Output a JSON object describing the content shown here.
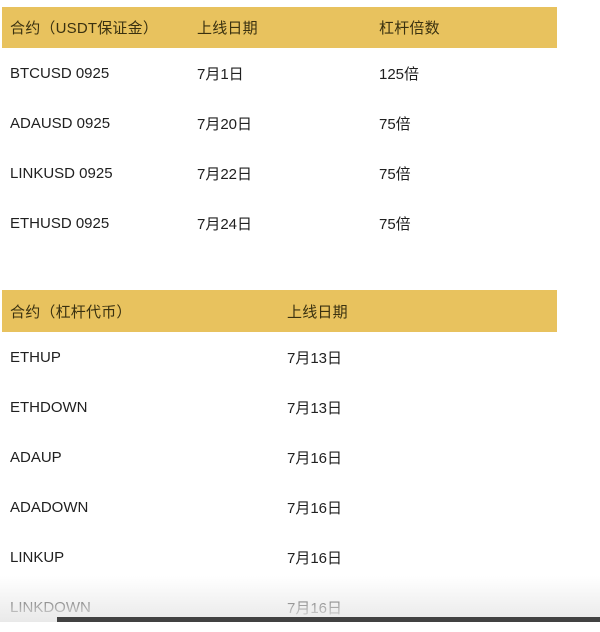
{
  "colors": {
    "header_bg": "#e8c25e",
    "header_text": "#3a3110",
    "body_text": "#202020",
    "partial_bar": "#414141"
  },
  "futures_table": {
    "columns": {
      "contract": "合约（USDT保证金）",
      "date": "上线日期",
      "leverage": "杠杆倍数"
    },
    "rows": [
      {
        "contract": "BTCUSD 0925",
        "date": "7月1日",
        "leverage": "125倍"
      },
      {
        "contract": "ADAUSD 0925",
        "date": "7月20日",
        "leverage": "75倍"
      },
      {
        "contract": "LINKUSD 0925",
        "date": "7月22日",
        "leverage": "75倍"
      },
      {
        "contract": "ETHUSD 0925",
        "date": "7月24日",
        "leverage": "75倍"
      }
    ]
  },
  "leveraged_tokens_table": {
    "columns": {
      "contract": "合约（杠杆代币）",
      "date": "上线日期"
    },
    "rows": [
      {
        "contract": "ETHUP",
        "date": "7月13日"
      },
      {
        "contract": "ETHDOWN",
        "date": "7月13日"
      },
      {
        "contract": "ADAUP",
        "date": "7月16日"
      },
      {
        "contract": "ADADOWN",
        "date": "7月16日"
      },
      {
        "contract": "LINKUP",
        "date": "7月16日"
      },
      {
        "contract": "LINKDOWN",
        "date": "7月16日"
      }
    ]
  }
}
